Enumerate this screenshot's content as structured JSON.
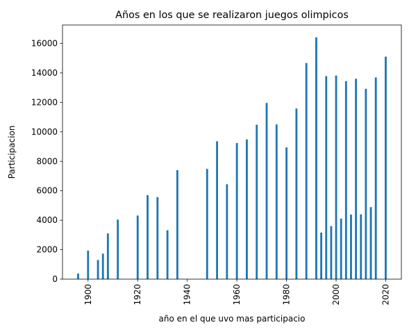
{
  "chart_data": {
    "type": "bar",
    "title": "Años en los que se realizaron juegos olimpicos",
    "xlabel": "año en el que uvo mas participacio",
    "ylabel": "Participacion",
    "xlim": [
      1889.7,
      2026.3
    ],
    "ylim": [
      0,
      17250
    ],
    "xticks": [
      1900,
      1920,
      1940,
      1960,
      1980,
      2000,
      2020
    ],
    "yticks": [
      0,
      2000,
      4000,
      6000,
      8000,
      10000,
      12000,
      14000,
      16000
    ],
    "grid": false,
    "bar_color": "#1f77b4",
    "x": [
      1896,
      1900,
      1904,
      1906,
      1908,
      1912,
      1920,
      1924,
      1928,
      1932,
      1936,
      1948,
      1952,
      1956,
      1960,
      1964,
      1968,
      1972,
      1976,
      1980,
      1984,
      1988,
      1992,
      1994,
      1996,
      1998,
      2000,
      2002,
      2004,
      2006,
      2008,
      2010,
      2012,
      2014,
      2016,
      2020
    ],
    "values": [
      380,
      1940,
      1300,
      1730,
      3100,
      4040,
      4320,
      5700,
      5570,
      3320,
      7400,
      7480,
      9360,
      6440,
      9240,
      9480,
      10480,
      11960,
      10500,
      8940,
      11580,
      14670,
      16410,
      3160,
      13780,
      3600,
      13820,
      4110,
      13440,
      4380,
      13600,
      4400,
      12920,
      4890,
      13690,
      15100
    ]
  }
}
